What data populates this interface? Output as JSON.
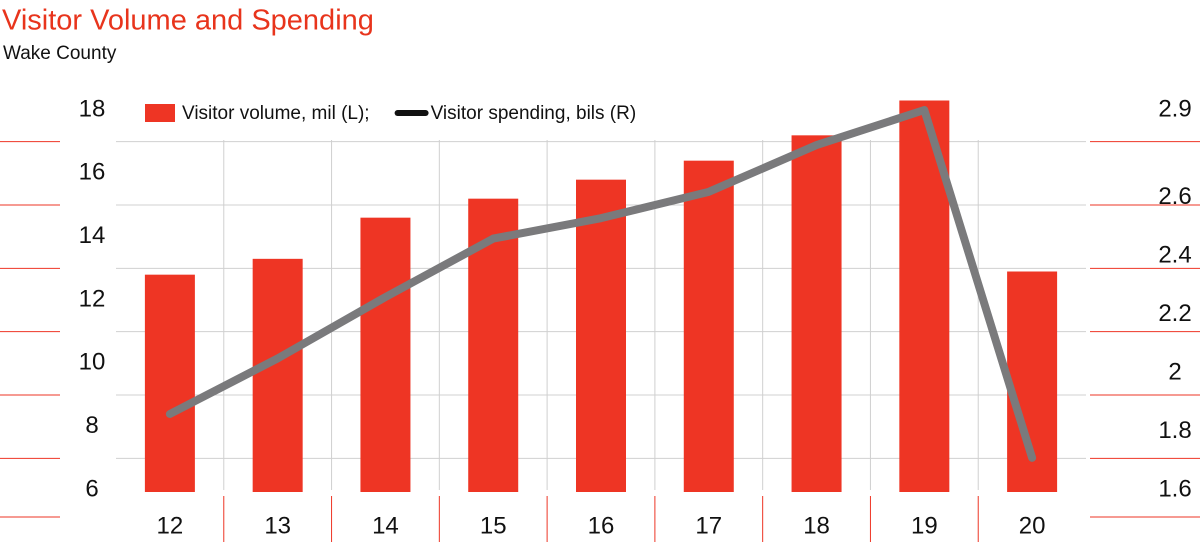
{
  "chart_data": {
    "type": "bar",
    "title": "Visitor Volume and Spending",
    "subtitle": "Wake County",
    "categories": [
      "12",
      "13",
      "14",
      "15",
      "16",
      "17",
      "18",
      "19",
      "20"
    ],
    "series": [
      {
        "name": "Visitor volume, mil (L);",
        "type": "bar",
        "color": "#ee3524",
        "values": [
          12.8,
          13.3,
          14.6,
          15.2,
          15.8,
          16.4,
          17.2,
          18.3,
          12.9
        ]
      },
      {
        "name": "Visitor spending, bils (R)",
        "type": "line",
        "axis": "y2",
        "color": "#7a7a7c",
        "legend_color": "#111111",
        "values": [
          1.86,
          2.05,
          2.26,
          2.46,
          2.53,
          2.62,
          2.78,
          2.9,
          1.71
        ]
      }
    ],
    "ylim": [
      6,
      18
    ],
    "yticks": [
      6,
      8,
      10,
      12,
      14,
      16,
      18
    ],
    "y2lim": [
      1.6,
      2.9
    ],
    "y2ticks": [
      1.6,
      1.8,
      2.0,
      2.2,
      2.4,
      2.6,
      2.9
    ],
    "grid": true
  }
}
